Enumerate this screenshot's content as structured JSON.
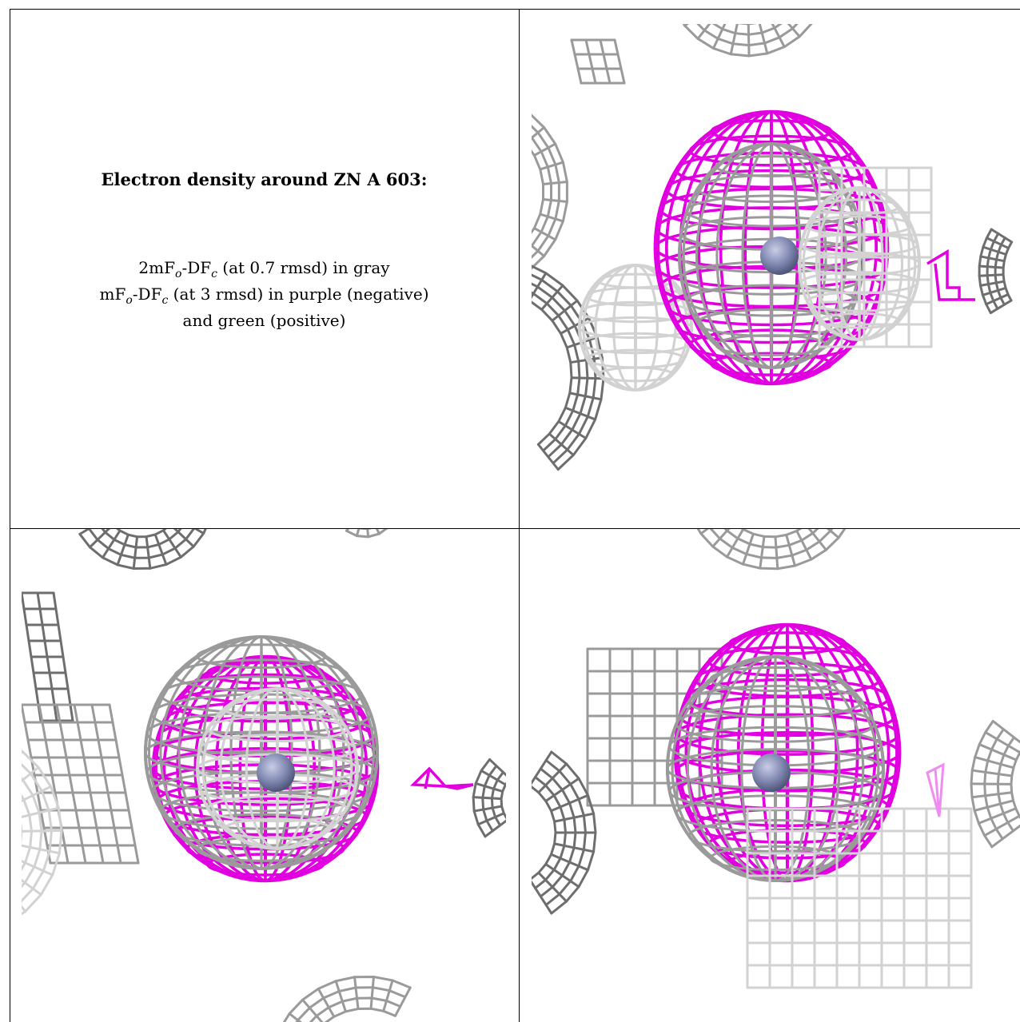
{
  "legend": {
    "title": "Electron density around ZN A 603:",
    "line1_prefix": "2mF",
    "line1_sub1": "o",
    "line1_mid": "-DF",
    "line1_sub2": "c",
    "line1_suffix": " (at 0.7 rmsd) in gray",
    "line2_prefix": "mF",
    "line2_sub1": "o",
    "line2_mid": "-DF",
    "line2_sub2": "c",
    "line2_suffix": " (at 3 rmsd) in purple (negative)",
    "line3": "and green (positive)"
  },
  "colors": {
    "gray_map": "#9a9a9a",
    "light_gray_map": "#d2d2d2",
    "dark_gray_map": "#6e6e6e",
    "negative_map": "#e000e0",
    "light_negative": "#f08cf0",
    "atom": "#7f87b0",
    "border": "#000000"
  },
  "panels": [
    {
      "name": "view-top-right",
      "atom": "zinc-atom"
    },
    {
      "name": "view-bottom-left",
      "atom": "zinc-atom"
    },
    {
      "name": "view-bottom-right",
      "atom": "zinc-atom"
    }
  ]
}
